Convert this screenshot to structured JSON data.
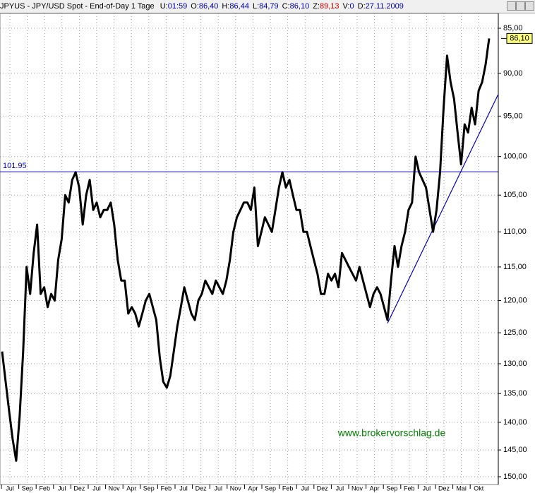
{
  "header": {
    "title": "JPYUS - JPY/USD Spot - End-of-Day 1 Tage",
    "fields": [
      {
        "label": "U:",
        "value": "01:59"
      },
      {
        "label": "O:",
        "value": "86,40"
      },
      {
        "label": "H:",
        "value": "86,44"
      },
      {
        "label": "L:",
        "value": "84,79"
      },
      {
        "label": "C:",
        "value": "86,10"
      },
      {
        "label": "Z:",
        "value": "89,13",
        "color": "#d00000"
      },
      {
        "label": "V:",
        "value": "0"
      },
      {
        "label": "D:",
        "value": "27.11.2009"
      }
    ]
  },
  "chart_data": {
    "type": "line",
    "log_scale": true,
    "grid": true,
    "color": "#000000",
    "ylim": [
      150,
      85
    ],
    "yticks": [
      {
        "value": 85,
        "label": "85,00"
      },
      {
        "value": 90,
        "label": "90,00"
      },
      {
        "value": 95,
        "label": "95,00"
      },
      {
        "value": 100,
        "label": "100,00"
      },
      {
        "value": 105,
        "label": "105,00"
      },
      {
        "value": 110,
        "label": "110,00"
      },
      {
        "value": 115,
        "label": "115,00"
      },
      {
        "value": 120,
        "label": "120,00"
      },
      {
        "value": 125,
        "label": "125,00"
      },
      {
        "value": 130,
        "label": "130,00"
      },
      {
        "value": 135,
        "label": "135,00"
      },
      {
        "value": 140,
        "label": "140,00"
      },
      {
        "value": 145,
        "label": "145,00"
      },
      {
        "value": 150,
        "label": "150,00"
      }
    ],
    "month_labels": [
      "Jul",
      "Sep",
      "Feb",
      "Jul",
      "Dez",
      "Jul",
      "Nov",
      "Apr",
      "Sep",
      "Feb",
      "Jul",
      "Dez",
      "Jul",
      "Nov",
      "Apr",
      "Sep",
      "Feb",
      "Jul",
      "Dez",
      "Jul",
      "Nov",
      "Apr",
      "Sep",
      "Feb",
      "Jul",
      "Dez",
      "Mai",
      "Okt"
    ],
    "values": [
      128,
      133,
      138,
      143,
      147,
      139,
      128,
      115,
      119,
      113,
      109,
      119,
      118,
      121,
      119,
      120,
      114,
      111,
      105,
      106,
      103,
      102,
      104,
      109,
      105,
      103,
      107,
      106,
      108,
      107,
      107,
      106,
      109,
      114,
      117,
      117,
      122,
      121,
      122,
      124,
      122,
      120,
      119,
      121,
      123,
      129,
      133,
      134,
      132,
      128,
      124,
      121,
      118,
      120,
      122,
      123,
      120,
      119,
      117,
      118,
      119,
      117,
      118,
      119,
      117,
      114,
      110,
      108,
      107,
      106,
      106,
      107,
      104,
      112,
      110,
      108,
      109,
      110,
      107,
      104,
      102,
      104,
      103,
      105,
      107,
      107,
      110,
      110,
      112,
      114,
      116,
      119,
      119,
      116,
      117,
      116,
      118,
      113,
      114,
      115,
      116,
      117,
      115,
      117,
      119,
      121,
      119,
      118,
      119,
      121,
      123,
      117,
      112,
      115,
      112,
      110,
      107,
      106,
      100,
      102,
      103,
      104,
      107,
      110,
      107,
      102,
      94,
      88,
      91,
      93,
      97,
      101,
      96,
      97,
      94,
      96,
      92,
      91,
      89,
      86.1
    ],
    "last_price": {
      "value": 86.1,
      "label": "86,10"
    },
    "hline": {
      "value": 101.95,
      "label": "101.95",
      "color": "#0000c0"
    },
    "trendline": {
      "x": [
        110,
        141.5
      ],
      "values": [
        123.5,
        92.5
      ],
      "color": "#0000c0"
    },
    "watermark": {
      "text": "www.brokervorschlag.de",
      "color": "#008000"
    }
  }
}
